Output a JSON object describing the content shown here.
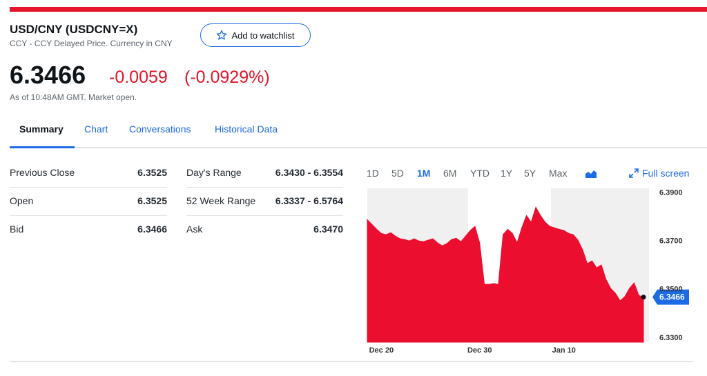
{
  "header": {
    "title": "USD/CNY (USDCNY=X)",
    "subtitle": "CCY - CCY Delayed Price. Currency in CNY",
    "watchlist": "Add to watchlist"
  },
  "quote": {
    "price": "6.3466",
    "change": "-0.0059",
    "change_percent": "(-0.0929%)",
    "as_of": "As of 10:48AM GMT. Market open."
  },
  "tabs": [
    "Summary",
    "Chart",
    "Conversations",
    "Historical Data"
  ],
  "stats": {
    "left": [
      [
        "Previous Close",
        "6.3525"
      ],
      [
        "Open",
        "6.3525"
      ],
      [
        "Bid",
        "6.3466"
      ]
    ],
    "right": [
      [
        "Day's Range",
        "6.3430 - 6.3554"
      ],
      [
        "52 Week Range",
        "6.3337 - 6.5764"
      ],
      [
        "Ask",
        "6.3470"
      ]
    ]
  },
  "chart_controls": {
    "ranges": [
      "1D",
      "5D",
      "1M",
      "6M",
      "YTD",
      "1Y",
      "5Y",
      "Max"
    ],
    "active": "1M",
    "full_screen": "Full screen"
  },
  "chart_data": {
    "type": "area",
    "color": "#ec0e2f",
    "categories": [
      null,
      null,
      null,
      "Dec 20",
      null,
      null,
      null,
      null,
      null,
      null,
      null,
      null,
      null,
      null,
      null,
      null,
      null,
      null,
      null,
      null,
      null,
      null,
      null,
      null,
      "Dec 30",
      null,
      null,
      null,
      null,
      null,
      null,
      null,
      null,
      null,
      null,
      null,
      null,
      null,
      null,
      null,
      null,
      null,
      "Jan 10",
      null,
      null,
      null,
      null,
      null,
      null,
      null,
      null,
      null,
      null,
      null,
      null,
      null,
      null,
      null,
      null,
      null
    ],
    "values": [
      6.3786,
      6.3766,
      6.3746,
      6.3729,
      6.3724,
      6.3732,
      6.3718,
      6.3707,
      6.3704,
      6.3698,
      6.3707,
      6.3698,
      6.3695,
      6.3701,
      6.3707,
      6.369,
      6.3678,
      6.3687,
      6.3704,
      6.3709,
      6.3695,
      6.3718,
      6.3741,
      6.3758,
      6.369,
      6.3519,
      6.3519,
      6.3522,
      6.3519,
      6.3724,
      6.3746,
      6.3729,
      6.369,
      6.3752,
      6.3803,
      6.3775,
      6.3837,
      6.3803,
      6.3775,
      6.3758,
      6.3752,
      6.3746,
      6.3741,
      6.3729,
      6.3724,
      6.3701,
      6.3661,
      6.3604,
      6.3616,
      6.3587,
      6.3599,
      6.3539,
      6.3502,
      6.3482,
      6.3451,
      6.3468,
      6.3502,
      6.3525,
      6.3473,
      6.3466
    ],
    "ylim": [
      6.328,
      6.3915
    ],
    "yticks": [
      {
        "value": 6.39,
        "label": "6.3900"
      },
      {
        "value": 6.37,
        "label": "6.3700"
      },
      {
        "value": 6.35,
        "label": "6.3500"
      },
      {
        "value": 6.33,
        "label": "6.3300"
      }
    ]
  }
}
